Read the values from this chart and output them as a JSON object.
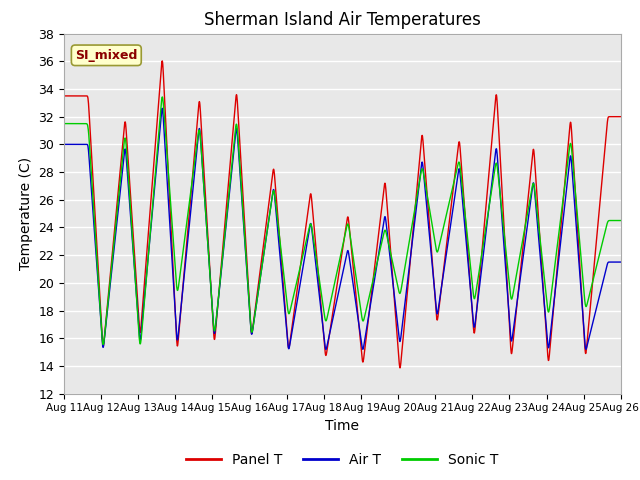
{
  "title": "Sherman Island Air Temperatures",
  "xlabel": "Time",
  "ylabel": "Temperature (C)",
  "ylim": [
    12,
    38
  ],
  "yticks": [
    12,
    14,
    16,
    18,
    20,
    22,
    24,
    26,
    28,
    30,
    32,
    34,
    36,
    38
  ],
  "xtick_labels": [
    "Aug 11",
    "Aug 12",
    "Aug 13",
    "Aug 14",
    "Aug 15",
    "Aug 16",
    "Aug 17",
    "Aug 18",
    "Aug 19",
    "Aug 20",
    "Aug 21",
    "Aug 22",
    "Aug 23",
    "Aug 24",
    "Aug 25",
    "Aug 26"
  ],
  "annotation_text": "SI_mixed",
  "colors": {
    "panel_t": "#dd0000",
    "air_t": "#0000cc",
    "sonic_t": "#00cc00"
  },
  "legend_labels": [
    "Panel T",
    "Air T",
    "Sonic T"
  ],
  "fig_bg": "#ffffff",
  "plot_bg": "#e8e8e8",
  "grid_color": "#ffffff",
  "n_days": 15,
  "samples_per_day": 144,
  "panel_peaks": [
    33.5,
    15.0,
    32.0,
    16.0,
    36.5,
    15.0,
    33.5,
    15.5,
    34.0,
    16.0,
    28.5,
    15.0,
    26.7,
    14.5,
    25.0,
    14.0,
    27.5,
    13.5,
    31.0,
    17.0,
    30.5,
    16.0,
    34.0,
    14.5,
    30.0,
    14.0,
    32.0,
    14.5,
    32.0
  ],
  "air_peaks": [
    30.0,
    15.0,
    30.0,
    15.5,
    33.0,
    15.5,
    31.5,
    16.0,
    31.5,
    16.0,
    27.0,
    15.0,
    24.5,
    15.0,
    22.5,
    15.0,
    25.0,
    15.5,
    29.0,
    17.5,
    28.5,
    16.5,
    30.0,
    15.5,
    27.5,
    15.0,
    29.5,
    15.0,
    21.5
  ],
  "sonic_peaks": [
    31.5,
    15.0,
    31.0,
    15.0,
    34.0,
    19.0,
    31.5,
    16.0,
    32.0,
    16.0,
    27.0,
    17.5,
    24.5,
    17.0,
    24.5,
    17.0,
    24.0,
    19.0,
    28.5,
    22.0,
    29.0,
    18.5,
    29.0,
    18.5,
    27.5,
    17.5,
    30.5,
    18.0,
    24.5
  ]
}
